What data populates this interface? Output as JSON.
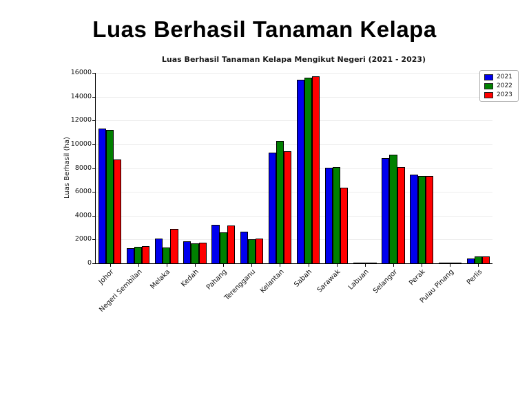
{
  "page": {
    "title": "Luas Berhasil Tanaman Kelapa"
  },
  "chart_data": {
    "type": "bar",
    "title": "Luas Berhasil Tanaman Kelapa Mengikut Negeri (2021 - 2023)",
    "xlabel": "",
    "ylabel": "Luas Berhasil (ha)",
    "ylim": [
      0,
      16000
    ],
    "ytick_step": 2000,
    "grid": true,
    "legend_position": "upper right",
    "categories": [
      "Johor",
      "Negeri Sembilan",
      "Melaka",
      "Kedah",
      "Pahang",
      "Terengganu",
      "Kelantan",
      "Sabah",
      "Sarawak",
      "Labuan",
      "Selangor",
      "Perak",
      "Pulau Pinang",
      "Perlis"
    ],
    "series": [
      {
        "name": "2021",
        "color": "#0000ee",
        "values": [
          11300,
          1300,
          2100,
          1850,
          3250,
          2650,
          9300,
          15400,
          8050,
          30,
          8850,
          7450,
          30,
          400
        ]
      },
      {
        "name": "2022",
        "color": "#008000",
        "values": [
          11200,
          1400,
          1350,
          1700,
          2600,
          2000,
          10300,
          15600,
          8100,
          30,
          9150,
          7350,
          30,
          550
        ]
      },
      {
        "name": "2023",
        "color": "#ff0000",
        "values": [
          8700,
          1450,
          2900,
          1750,
          3150,
          2100,
          9400,
          15700,
          6350,
          30,
          8100,
          7350,
          30,
          600
        ]
      }
    ]
  }
}
